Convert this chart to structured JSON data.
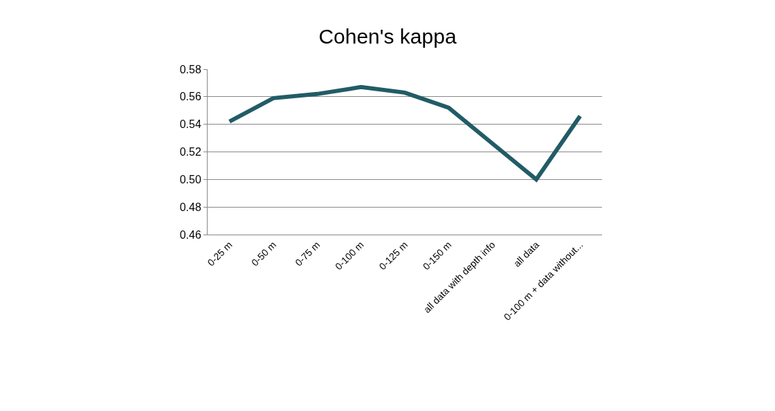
{
  "chart_data": {
    "type": "line",
    "title": "Cohen's kappa",
    "categories": [
      "0-25 m",
      "0-50 m",
      "0-75 m",
      "0-100 m",
      "0-125 m",
      "0-150 m",
      "all data with depth info",
      "all data",
      "0-100 m + data without..."
    ],
    "series": [
      {
        "color": "#225c66",
        "values": [
          0.542,
          0.559,
          0.562,
          0.567,
          0.563,
          0.552,
          0.526,
          0.5,
          0.546
        ]
      }
    ],
    "ylim": [
      0.46,
      0.58
    ],
    "yticks": [
      0.46,
      0.48,
      {
        "value": 0.5,
        "label": "0.50"
      },
      0.52,
      0.54,
      0.56,
      0.58
    ],
    "grid": "y",
    "legend": false,
    "marker": "none",
    "line_style": "solid"
  }
}
